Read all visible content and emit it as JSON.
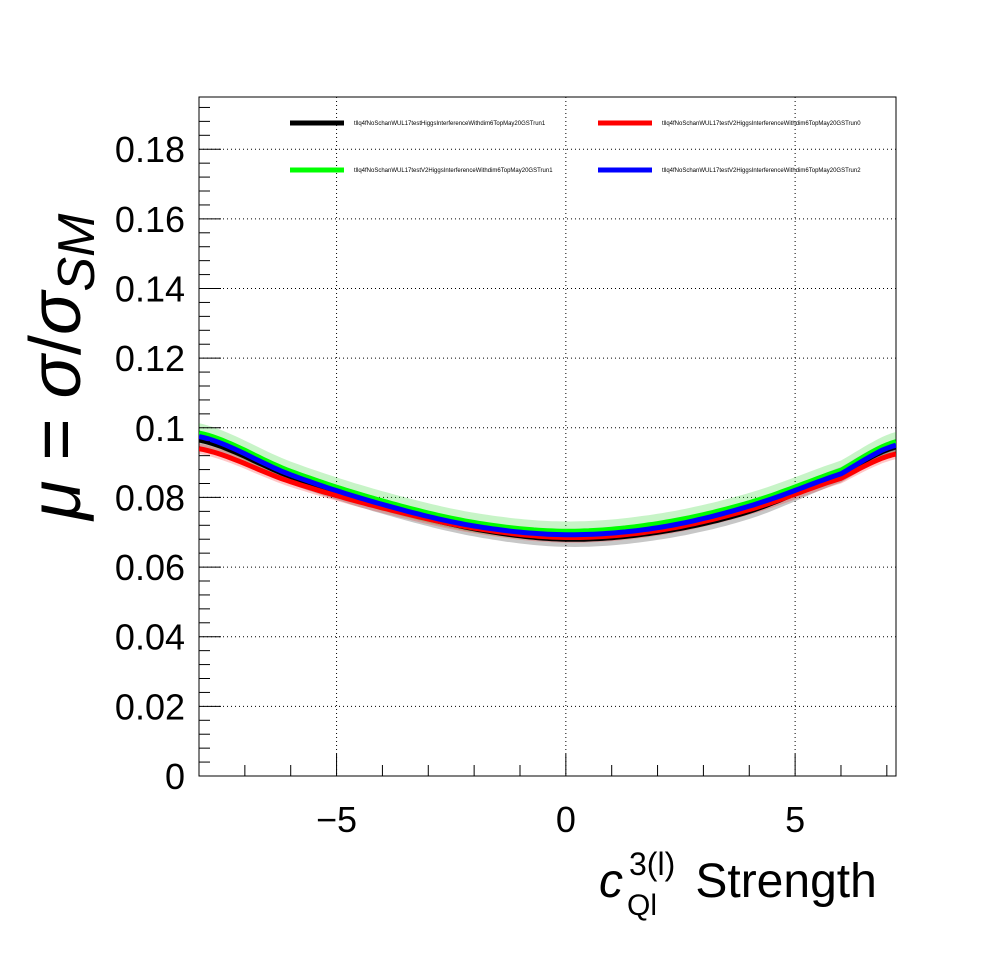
{
  "chart_data": {
    "type": "line",
    "title": "",
    "xlabel": {
      "base": "c",
      "superscript": "3(l)",
      "subscript": "Ql",
      "suffix": " Strength"
    },
    "ylabel": {
      "mu": "μ",
      "equals": " = ",
      "sigma1": "σ",
      "slash": "/",
      "sigma2": "σ",
      "subscript": "SM"
    },
    "xlim": [
      -8,
      7.2
    ],
    "ylim": [
      0,
      0.195
    ],
    "xticks": [
      -5,
      0,
      5
    ],
    "xtick_labels": [
      "−5",
      "0",
      "5"
    ],
    "yticks": [
      0,
      0.02,
      0.04,
      0.06,
      0.08,
      0.1,
      0.12,
      0.14,
      0.16,
      0.18
    ],
    "ytick_labels": [
      "0",
      "0.02",
      "0.04",
      "0.06",
      "0.08",
      "0.1",
      "0.12",
      "0.14",
      "0.16",
      "0.18"
    ],
    "grid": true,
    "legend_position": "top",
    "series": [
      {
        "name": "tllq4fNoSchanWUL17testHiggsInterferenceWithdim6TopMay20GSTrun1",
        "color": "#000000",
        "band_color": "#000000",
        "x": [
          -8,
          -6,
          -4,
          -2,
          0,
          2,
          4,
          6,
          7.2
        ],
        "y": [
          0.0965,
          0.086,
          0.0775,
          0.071,
          0.068,
          0.07,
          0.076,
          0.0865,
          0.0945
        ],
        "band_halfwidth": 0.0022
      },
      {
        "name": "tllq4fNoSchanWUL17testV2HiggsInterferenceWithdim6TopMay20GSTrun0",
        "color": "#ff0000",
        "band_color": "#ff0000",
        "x": [
          -8,
          -6,
          -4,
          -2,
          0,
          2,
          4,
          6,
          7.2
        ],
        "y": [
          0.094,
          0.0845,
          0.077,
          0.0712,
          0.0685,
          0.0705,
          0.0765,
          0.0855,
          0.0925
        ],
        "band_halfwidth": 0.0015
      },
      {
        "name": "tllq4fNoSchanWUL17testV2HiggsInterferenceWithdim6TopMay20GSTrun1",
        "color": "#00ff00",
        "band_color": "#00cc00",
        "x": [
          -8,
          -6,
          -4,
          -2,
          0,
          2,
          4,
          6,
          7.2
        ],
        "y": [
          0.0985,
          0.0875,
          0.079,
          0.0728,
          0.0703,
          0.0725,
          0.0785,
          0.0878,
          0.096
        ],
        "band_halfwidth": 0.0028
      },
      {
        "name": "tllq4fNoSchanWUL17testV2HiggsInterferenceWithdim6TopMay20GSTrun2",
        "color": "#0000ff",
        "band_color": "#0000ff",
        "x": [
          -8,
          -6,
          -4,
          -2,
          0,
          2,
          4,
          6,
          7.2
        ],
        "y": [
          0.0975,
          0.0865,
          0.078,
          0.0718,
          0.0693,
          0.0713,
          0.0775,
          0.0868,
          0.095
        ],
        "band_halfwidth": 0.0014
      }
    ]
  }
}
